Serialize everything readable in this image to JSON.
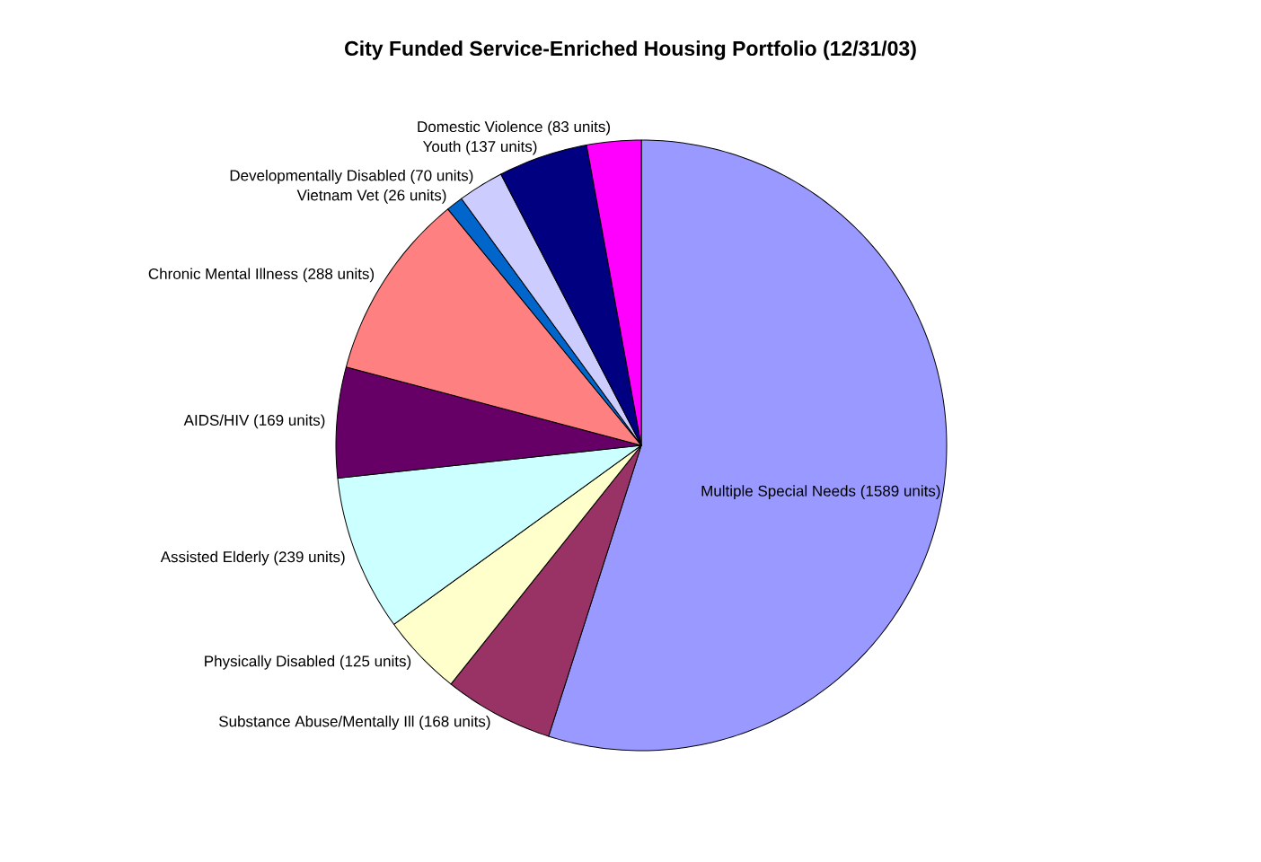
{
  "chart_data": {
    "type": "pie",
    "title": "City Funded Service-Enriched Housing Portfolio (12/31/03)",
    "categories": [
      "Multiple Special Needs (1589 units)",
      "Substance Abuse/Mentally Ill (168 units)",
      "Physically Disabled (125 units)",
      "Assisted Elderly (239 units)",
      "AIDS/HIV (169 units)",
      "Chronic Mental Illness (288 units)",
      "Vietnam Vet (26 units)",
      "Developmentally Disabled (70 units)",
      "Youth (137 units)",
      "Domestic Violence (83 units)"
    ],
    "values": [
      1589,
      168,
      125,
      239,
      169,
      288,
      26,
      70,
      137,
      83
    ],
    "colors": [
      "#9999ff",
      "#993366",
      "#ffffcc",
      "#ccffff",
      "#660066",
      "#ff8080",
      "#0066cc",
      "#ccccff",
      "#000080",
      "#ff00ff"
    ]
  }
}
